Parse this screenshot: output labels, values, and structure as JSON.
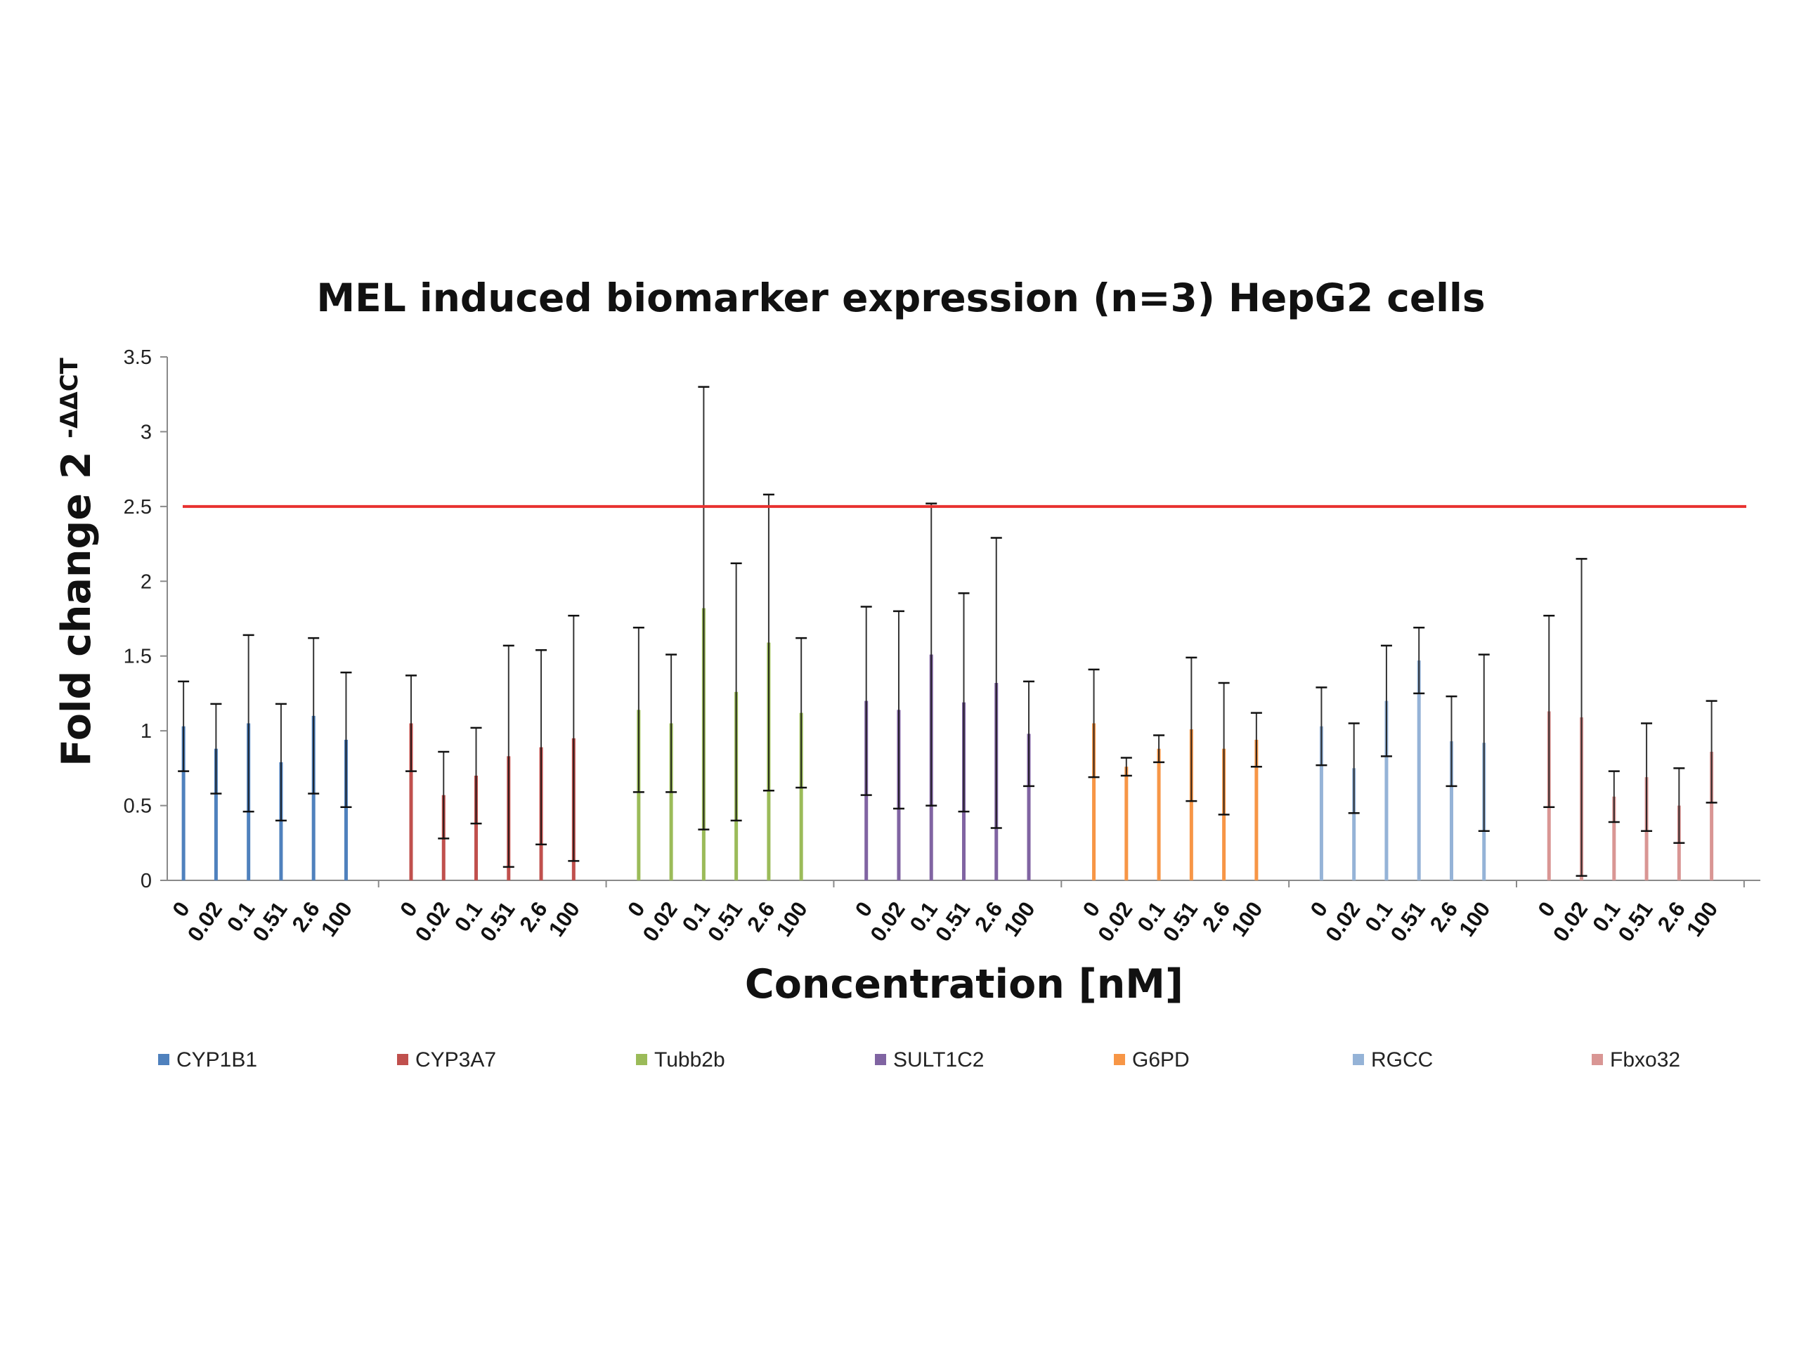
{
  "chart_data": {
    "type": "bar",
    "title": "MEL induced biomarker expression (n=3) HepG2 cells",
    "xlabel": "Concentration [nM]",
    "ylabel": "Fold change 2",
    "ylabel_superscript": "-ΔΔCT",
    "ylim": [
      0,
      3.5
    ],
    "yticks": [
      "0",
      "0.5",
      "1",
      "1.5",
      "2",
      "2.5",
      "3",
      "3.5"
    ],
    "grid": false,
    "legend_position": "bottom",
    "threshold": {
      "value": 2.5,
      "color": "#e8312f"
    },
    "concentrations": [
      "0",
      "0.02",
      "0.1",
      "0.51",
      "2.6",
      "100"
    ],
    "series": [
      {
        "name": "CYP1B1",
        "color": "#4f81bd",
        "values": [
          1.03,
          0.88,
          1.05,
          0.79,
          1.1,
          0.94
        ],
        "errors": [
          0.3,
          0.3,
          0.59,
          0.39,
          0.52,
          0.45
        ]
      },
      {
        "name": "CYP3A7",
        "color": "#c0504d",
        "values": [
          1.05,
          0.57,
          0.7,
          0.83,
          0.89,
          0.95
        ],
        "errors": [
          0.32,
          0.29,
          0.32,
          0.74,
          0.65,
          0.82
        ]
      },
      {
        "name": "Tubb2b",
        "color": "#9bbb59",
        "values": [
          1.14,
          1.05,
          1.82,
          1.26,
          1.59,
          1.12
        ],
        "errors": [
          0.55,
          0.46,
          1.48,
          0.86,
          0.99,
          0.5
        ]
      },
      {
        "name": "SULT1C2",
        "color": "#8064a2",
        "values": [
          1.2,
          1.14,
          1.51,
          1.19,
          1.32,
          0.98
        ],
        "errors": [
          0.63,
          0.66,
          1.01,
          0.73,
          0.97,
          0.35
        ]
      },
      {
        "name": "G6PD",
        "color": "#f79646",
        "values": [
          1.05,
          0.76,
          0.88,
          1.01,
          0.88,
          0.94
        ],
        "errors": [
          0.36,
          0.06,
          0.09,
          0.48,
          0.44,
          0.18
        ]
      },
      {
        "name": "RGCC",
        "color": "#95b3d7",
        "values": [
          1.03,
          0.75,
          1.2,
          1.47,
          0.93,
          0.92
        ],
        "errors": [
          0.26,
          0.3,
          0.37,
          0.22,
          0.3,
          0.59
        ]
      },
      {
        "name": "Fbxo32",
        "color": "#d99694",
        "values": [
          1.13,
          1.09,
          0.56,
          0.69,
          0.5,
          0.86
        ],
        "errors": [
          0.64,
          1.06,
          0.17,
          0.36,
          0.25,
          0.34
        ]
      }
    ]
  }
}
